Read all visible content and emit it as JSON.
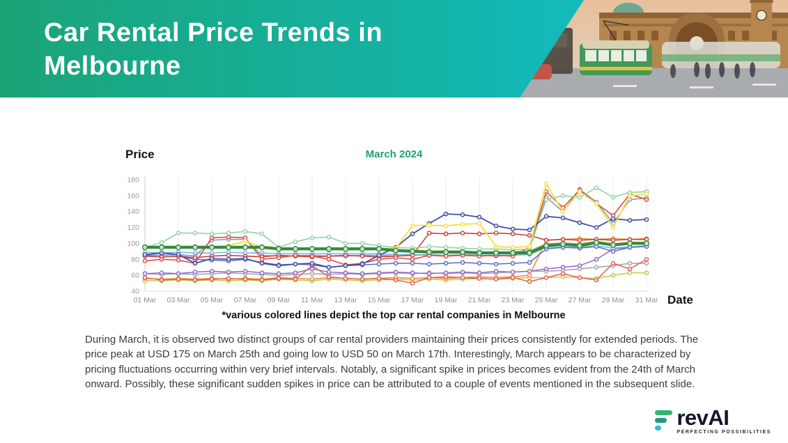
{
  "slide": {
    "title": "Car Rental Price Trends in Melbourne",
    "caption": "*various colored lines depict the top car rental companies in Melbourne",
    "body_text": "During March, it is observed two distinct groups of car rental providers maintaining their prices consistently for extended periods. The price peak at USD 175 on March 25th and going low to USD 50 on March 17th. Interestingly, March appears to be characterized by pricing fluctuations occurring within very brief intervals. Notably, a significant spike in prices becomes evident from the 24th of March onward. Possibly, these significant sudden spikes in price can be attributed to a couple of events mentioned in the subsequent slide.",
    "colors": {
      "banner_gradient_start": "#1ba377",
      "banner_gradient_end": "#13c2d8",
      "title_text": "#ffffff",
      "chart_title_green": "#19a56e"
    }
  },
  "chart_data": {
    "type": "line",
    "title": "March 2024",
    "ylabel": "Price",
    "xlabel": "Date",
    "x_unit": "day of March 2024",
    "x_days": [
      1,
      2,
      3,
      4,
      5,
      6,
      7,
      8,
      9,
      10,
      11,
      12,
      13,
      14,
      15,
      16,
      17,
      18,
      19,
      20,
      21,
      22,
      23,
      24,
      25,
      26,
      27,
      28,
      29,
      30,
      31
    ],
    "x_tick_labels": [
      "01 Mar",
      "03 Mar",
      "05 Mar",
      "07 Mar",
      "09 Mar",
      "11 Mar",
      "13 Mar",
      "15 Mar",
      "17 Mar",
      "19 Mar",
      "21 Mar",
      "23 Mar",
      "25 Mar",
      "27 Mar",
      "29 Mar",
      "31 Mar"
    ],
    "y_ticks": [
      180,
      160,
      140,
      120,
      100,
      80,
      60,
      40
    ],
    "ylim": [
      40,
      180
    ],
    "grid": "vertical-only",
    "legend_position": "none",
    "note": "series are anonymized top car rental companies; values in USD",
    "series": [
      {
        "name": "company-gray",
        "color": "#a3a3a3",
        "width": 1.5,
        "values": [
          62,
          61,
          62,
          61,
          62,
          63,
          62,
          61,
          60,
          61,
          62,
          61,
          62,
          61,
          62,
          63,
          62,
          63,
          62,
          63,
          62,
          63,
          64,
          65,
          65,
          66,
          68,
          70,
          72,
          75,
          75
        ]
      },
      {
        "name": "company-purple",
        "color": "#9169c9",
        "width": 1.5,
        "values": [
          62,
          63,
          62,
          64,
          65,
          64,
          65,
          63,
          62,
          63,
          68,
          64,
          63,
          62,
          63,
          64,
          63,
          62,
          63,
          64,
          63,
          65,
          64,
          65,
          68,
          70,
          72,
          80,
          93,
          95,
          97
        ]
      },
      {
        "name": "company-lime",
        "color": "#c3ca48",
        "width": 1.5,
        "values": [
          53,
          53,
          54,
          53,
          54,
          53,
          54,
          53,
          55,
          54,
          53,
          55,
          54,
          53,
          54,
          55,
          54,
          55,
          54,
          55,
          56,
          55,
          56,
          57,
          57,
          58,
          57,
          56,
          60,
          63,
          63
        ]
      },
      {
        "name": "company-orange",
        "color": "#ec8f3e",
        "width": 1.6,
        "values": [
          56,
          55,
          56,
          55,
          56,
          55,
          56,
          55,
          57,
          56,
          55,
          57,
          56,
          55,
          56,
          57,
          56,
          57,
          56,
          57,
          58,
          57,
          58,
          60,
          104,
          105,
          106,
          105,
          106,
          105,
          106
        ]
      },
      {
        "name": "company-red-low",
        "color": "#e06055",
        "width": 1.5,
        "values": [
          57,
          54,
          55,
          54,
          55,
          56,
          55,
          54,
          56,
          55,
          72,
          58,
          56,
          55,
          56,
          54,
          50,
          57,
          58,
          57,
          56,
          55,
          57,
          52,
          57,
          62,
          57,
          54,
          75,
          68,
          80
        ]
      },
      {
        "name": "company-lightblue",
        "color": "#7cb5e3",
        "width": 1.6,
        "values": [
          89,
          88,
          89,
          88,
          88,
          89,
          88,
          88,
          87,
          87,
          87,
          87,
          87,
          87,
          87,
          86,
          86,
          85,
          85,
          85,
          85,
          85,
          85,
          86,
          95,
          96,
          95,
          97,
          94,
          96,
          97
        ]
      },
      {
        "name": "company-indigo",
        "color": "#5d6cc5",
        "width": 1.5,
        "values": [
          85,
          83,
          84,
          80,
          79,
          78,
          80,
          76,
          73,
          74,
          73,
          70,
          72,
          73,
          74,
          75,
          75,
          74,
          75,
          76,
          75,
          74,
          75,
          76,
          93,
          95,
          94,
          96,
          90,
          95,
          96
        ]
      },
      {
        "name": "company-steel",
        "color": "#8b9ab8",
        "width": 1.6,
        "values": [
          86,
          85,
          86,
          84,
          104,
          105,
          105,
          85,
          84,
          84,
          85,
          84,
          84,
          85,
          85,
          84,
          85,
          86,
          85,
          86,
          85,
          84,
          85,
          95,
          158,
          140,
          168,
          152,
          125,
          155,
          157
        ]
      },
      {
        "name": "company-crimson",
        "color": "#c5423e",
        "width": 1.6,
        "values": [
          84,
          83,
          84,
          82,
          84,
          85,
          84,
          83,
          85,
          84,
          83,
          84,
          85,
          84,
          83,
          84,
          85,
          113,
          112,
          113,
          112,
          113,
          112,
          110,
          104,
          105,
          104,
          105,
          104,
          105,
          105
        ]
      },
      {
        "name": "company-red",
        "color": "#e04b44",
        "width": 1.6,
        "values": [
          78,
          80,
          79,
          75,
          107,
          108,
          107,
          80,
          82,
          85,
          84,
          80,
          73,
          75,
          80,
          82,
          80,
          85,
          84,
          85,
          84,
          85,
          84,
          95,
          165,
          145,
          167,
          150,
          135,
          162,
          155
        ]
      },
      {
        "name": "company-mint",
        "color": "#8fd4a8",
        "width": 1.6,
        "values": [
          95,
          101,
          113,
          113,
          112,
          113,
          115,
          112,
          95,
          102,
          107,
          108,
          100,
          100,
          97,
          95,
          94,
          96,
          95,
          94,
          93,
          93,
          92,
          93,
          155,
          160,
          158,
          170,
          158,
          164,
          165
        ]
      },
      {
        "name": "company-navy",
        "color": "#3c4ea3",
        "width": 1.8,
        "values": [
          86,
          88,
          86,
          75,
          81,
          80,
          81,
          75,
          72,
          74,
          75,
          70,
          72,
          74,
          85,
          95,
          112,
          125,
          137,
          136,
          133,
          122,
          118,
          117,
          134,
          132,
          126,
          120,
          131,
          129,
          130
        ]
      },
      {
        "name": "company-yellow",
        "color": "#f2e14c",
        "width": 2.0,
        "values": [
          94,
          95,
          96,
          96,
          96,
          97,
          103,
          95,
          93,
          94,
          94,
          93,
          92,
          93,
          93,
          94,
          122,
          123,
          122,
          124,
          125,
          96,
          95,
          96,
          175,
          140,
          165,
          150,
          120,
          160,
          162
        ]
      },
      {
        "name": "company-olive",
        "color": "#a9a83a",
        "width": 2.6,
        "values": [
          96,
          96,
          96,
          96,
          96,
          96,
          96,
          96,
          94,
          94,
          94,
          94,
          94,
          94,
          94,
          92,
          91,
          90,
          90,
          90,
          89,
          89,
          89,
          90,
          99,
          100,
          99,
          102,
          99,
          101,
          101
        ]
      },
      {
        "name": "company-darkgreen",
        "color": "#2e8b3f",
        "width": 4.0,
        "values": [
          95,
          95,
          95,
          95,
          95,
          95,
          95,
          95,
          93,
          93,
          93,
          93,
          93,
          93,
          93,
          91,
          90,
          89,
          89,
          89,
          88,
          88,
          88,
          88,
          97,
          99,
          97,
          101,
          98,
          100,
          100
        ]
      }
    ]
  },
  "logo": {
    "text": "revAI",
    "tagline": "PERFECTING POSSIBILITIES",
    "bar_colors": [
      "#33b273",
      "#1d9d80",
      "#35b8dc"
    ],
    "text_color": "#15152b"
  }
}
